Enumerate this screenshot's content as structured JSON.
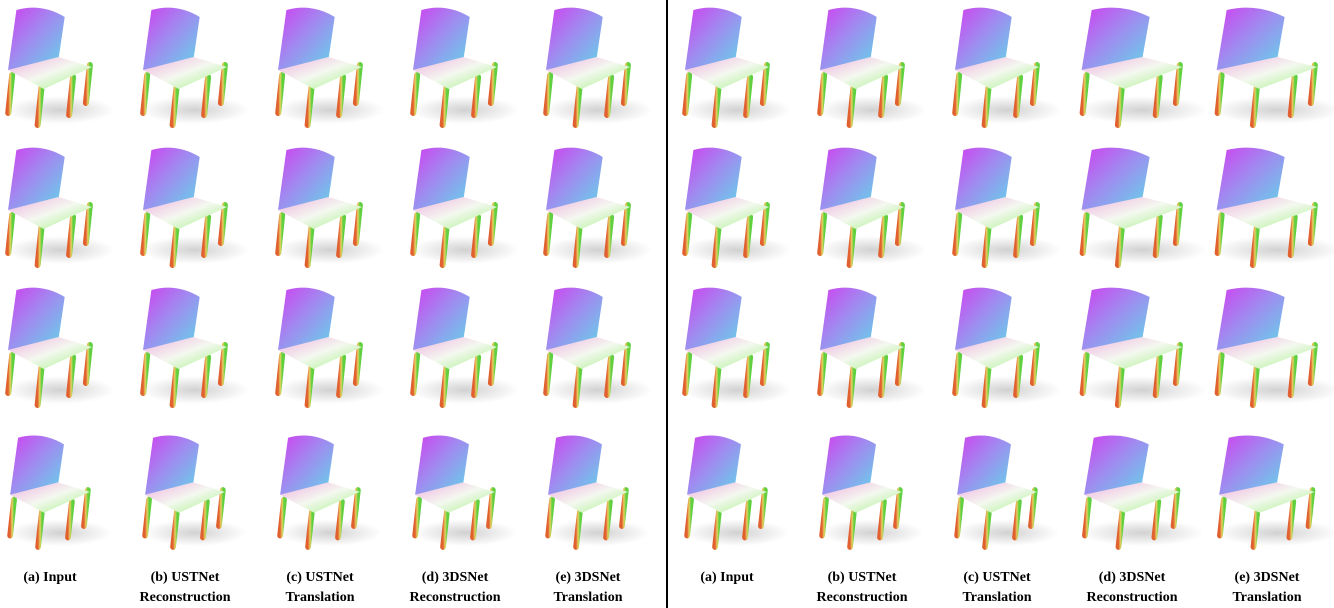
{
  "panels": [
    {
      "captions": [
        [
          "(a) Input"
        ],
        [
          "(b) USTNet",
          "Reconstruction"
        ],
        [
          "(c) USTNet",
          "Translation"
        ],
        [
          "(d) 3DSNet",
          "Reconstruction"
        ],
        [
          "(e) 3DSNet",
          "Translation"
        ]
      ]
    },
    {
      "captions": [
        [
          "(a) Input"
        ],
        [
          "(b) USTNet",
          "Reconstruction"
        ],
        [
          "(c) USTNet",
          "Translation"
        ],
        [
          "(d) 3DSNet",
          "Reconstruction"
        ],
        [
          "(e) 3DSNet",
          "Translation"
        ]
      ]
    }
  ]
}
